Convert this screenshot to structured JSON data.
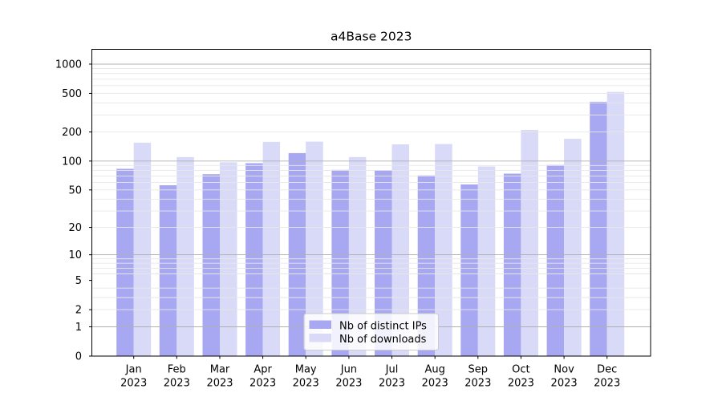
{
  "chart_data": {
    "type": "bar",
    "title": "a4Base 2023",
    "categories": [
      "Jan\n2023",
      "Feb\n2023",
      "Mar\n2023",
      "Apr\n2023",
      "May\n2023",
      "Jun\n2023",
      "Jul\n2023",
      "Aug\n2023",
      "Sep\n2023",
      "Oct\n2023",
      "Nov\n2023",
      "Dec\n2023"
    ],
    "series": [
      {
        "name": "Nb of distinct IPs",
        "color": "#a8a8f2",
        "values": [
          83,
          56,
          73,
          95,
          121,
          81,
          80,
          71,
          57,
          74,
          91,
          410
        ]
      },
      {
        "name": "Nb of downloads",
        "color": "#d9d9f8",
        "values": [
          155,
          110,
          97,
          158,
          159,
          110,
          149,
          150,
          88,
          210,
          170,
          518
        ]
      }
    ],
    "xlabel": "",
    "ylabel": "",
    "yscale": "log1p",
    "ylim": [
      0,
      1420
    ],
    "yticks": [
      0,
      1,
      2,
      5,
      10,
      20,
      50,
      100,
      200,
      500,
      1000
    ],
    "grid": true,
    "grid_major": [
      1,
      10,
      100,
      1000
    ],
    "grid_minor": [
      2,
      3,
      4,
      6,
      7,
      8,
      9,
      20,
      30,
      40,
      50,
      60,
      70,
      80,
      90,
      200,
      300,
      400,
      500,
      600,
      700,
      800,
      900
    ],
    "legend_position": "lower center"
  },
  "colors": {
    "background": "#ffffff",
    "axis": "#000000",
    "grid_major": "#b0b0b0",
    "grid_minor": "#e7e7e7",
    "legend_border": "#cccccc",
    "legend_background": "rgba(255,255,255,0.85)"
  }
}
